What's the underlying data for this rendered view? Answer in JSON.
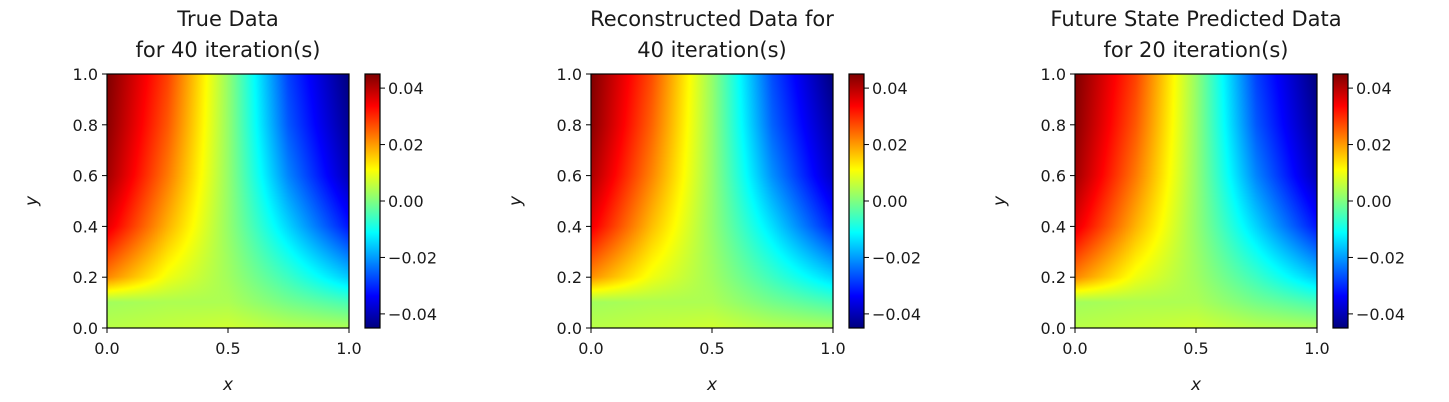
{
  "chart_data": [
    {
      "type": "heatmap",
      "title": [
        "True Data",
        "for 40 iteration(s)"
      ],
      "xlabel": "x",
      "ylabel": "y",
      "xlim": [
        0.0,
        1.0
      ],
      "ylim": [
        0.0,
        1.0
      ],
      "x_ticks": [
        "0.0",
        "0.5",
        "1.0"
      ],
      "y_ticks": [
        "0.0",
        "0.2",
        "0.4",
        "0.6",
        "0.8",
        "1.0"
      ],
      "colormap": "jet",
      "clim": [
        -0.045,
        0.045
      ],
      "colorbar_ticks": [
        0.04,
        0.02,
        0.0,
        -0.02,
        -0.04
      ],
      "colorbar_tick_labels": [
        "0.04",
        "0.02",
        "0.00",
        "−0.02",
        "−0.04"
      ],
      "field": {
        "y_values": [
          1.0,
          0.8,
          0.6,
          0.4,
          0.2,
          0.1,
          0.0
        ],
        "x_values": [
          0.0,
          0.25,
          0.5,
          0.75,
          1.0
        ],
        "values": [
          [
            0.045,
            0.028,
            0.002,
            -0.028,
            -0.045
          ],
          [
            0.044,
            0.026,
            0.002,
            -0.026,
            -0.043
          ],
          [
            0.042,
            0.023,
            0.002,
            -0.022,
            -0.04
          ],
          [
            0.036,
            0.018,
            0.002,
            -0.015,
            -0.032
          ],
          [
            0.022,
            0.01,
            0.003,
            -0.006,
            -0.016
          ],
          [
            0.003,
            0.004,
            0.004,
            -0.001,
            -0.005
          ],
          [
            0.005,
            0.006,
            0.007,
            0.005,
            0.004
          ]
        ]
      }
    },
    {
      "type": "heatmap",
      "title": [
        "Reconstructed Data for",
        "40 iteration(s)"
      ],
      "xlabel": "x",
      "ylabel": "y",
      "xlim": [
        0.0,
        1.0
      ],
      "ylim": [
        0.0,
        1.0
      ],
      "x_ticks": [
        "0.0",
        "0.5",
        "1.0"
      ],
      "y_ticks": [
        "0.0",
        "0.2",
        "0.4",
        "0.6",
        "0.8",
        "1.0"
      ],
      "colormap": "jet",
      "clim": [
        -0.045,
        0.045
      ],
      "colorbar_ticks": [
        0.04,
        0.02,
        0.0,
        -0.02,
        -0.04
      ],
      "colorbar_tick_labels": [
        "0.04",
        "0.02",
        "0.00",
        "−0.02",
        "−0.04"
      ],
      "field": {
        "y_values": [
          1.0,
          0.8,
          0.6,
          0.4,
          0.2,
          0.1,
          0.0
        ],
        "x_values": [
          0.0,
          0.25,
          0.5,
          0.75,
          1.0
        ],
        "values": [
          [
            0.045,
            0.027,
            0.002,
            -0.027,
            -0.045
          ],
          [
            0.044,
            0.025,
            0.002,
            -0.025,
            -0.042
          ],
          [
            0.041,
            0.022,
            0.002,
            -0.021,
            -0.039
          ],
          [
            0.035,
            0.017,
            0.002,
            -0.014,
            -0.031
          ],
          [
            0.021,
            0.01,
            0.003,
            -0.006,
            -0.015
          ],
          [
            0.003,
            0.004,
            0.004,
            -0.001,
            -0.005
          ],
          [
            0.005,
            0.006,
            0.007,
            0.005,
            0.004
          ]
        ]
      }
    },
    {
      "type": "heatmap",
      "title": [
        "Future State Predicted Data",
        "for 20 iteration(s)"
      ],
      "xlabel": "x",
      "ylabel": "y",
      "xlim": [
        0.0,
        1.0
      ],
      "ylim": [
        0.0,
        1.0
      ],
      "x_ticks": [
        "0.0",
        "0.5",
        "1.0"
      ],
      "y_ticks": [
        "0.0",
        "0.2",
        "0.4",
        "0.6",
        "0.8",
        "1.0"
      ],
      "colormap": "jet",
      "clim": [
        -0.045,
        0.045
      ],
      "colorbar_ticks": [
        0.04,
        0.02,
        0.0,
        -0.02,
        -0.04
      ],
      "colorbar_tick_labels": [
        "0.04",
        "0.02",
        "0.00",
        "−0.02",
        "−0.04"
      ],
      "field": {
        "y_values": [
          1.0,
          0.8,
          0.6,
          0.4,
          0.2,
          0.1,
          0.0
        ],
        "x_values": [
          0.0,
          0.25,
          0.5,
          0.75,
          1.0
        ],
        "values": [
          [
            0.045,
            0.028,
            0.002,
            -0.028,
            -0.045
          ],
          [
            0.044,
            0.026,
            0.002,
            -0.026,
            -0.043
          ],
          [
            0.042,
            0.023,
            0.002,
            -0.022,
            -0.04
          ],
          [
            0.036,
            0.018,
            0.002,
            -0.015,
            -0.032
          ],
          [
            0.022,
            0.01,
            0.003,
            -0.006,
            -0.016
          ],
          [
            0.003,
            0.004,
            0.004,
            -0.001,
            -0.005
          ],
          [
            0.005,
            0.006,
            0.007,
            0.005,
            0.004
          ]
        ]
      }
    }
  ]
}
